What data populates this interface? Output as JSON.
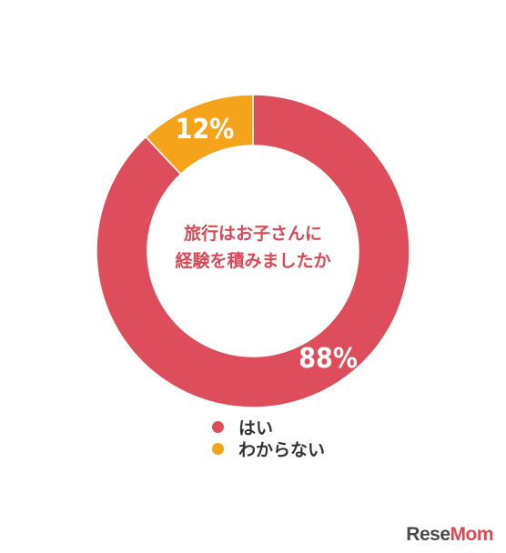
{
  "chart_data": {
    "type": "pie",
    "variant": "donut",
    "center_title_lines": [
      "旅行はお子さんに",
      "経験を積みましたか"
    ],
    "slices": [
      {
        "label": "はい",
        "value": 88,
        "display": "88%",
        "color": "#de4d5b"
      },
      {
        "label": "わからない",
        "value": 12,
        "display": "12%",
        "color": "#f5a31b"
      }
    ],
    "legend_position": "bottom"
  },
  "watermark": {
    "part1": "Rese",
    "part2": "Mom"
  }
}
